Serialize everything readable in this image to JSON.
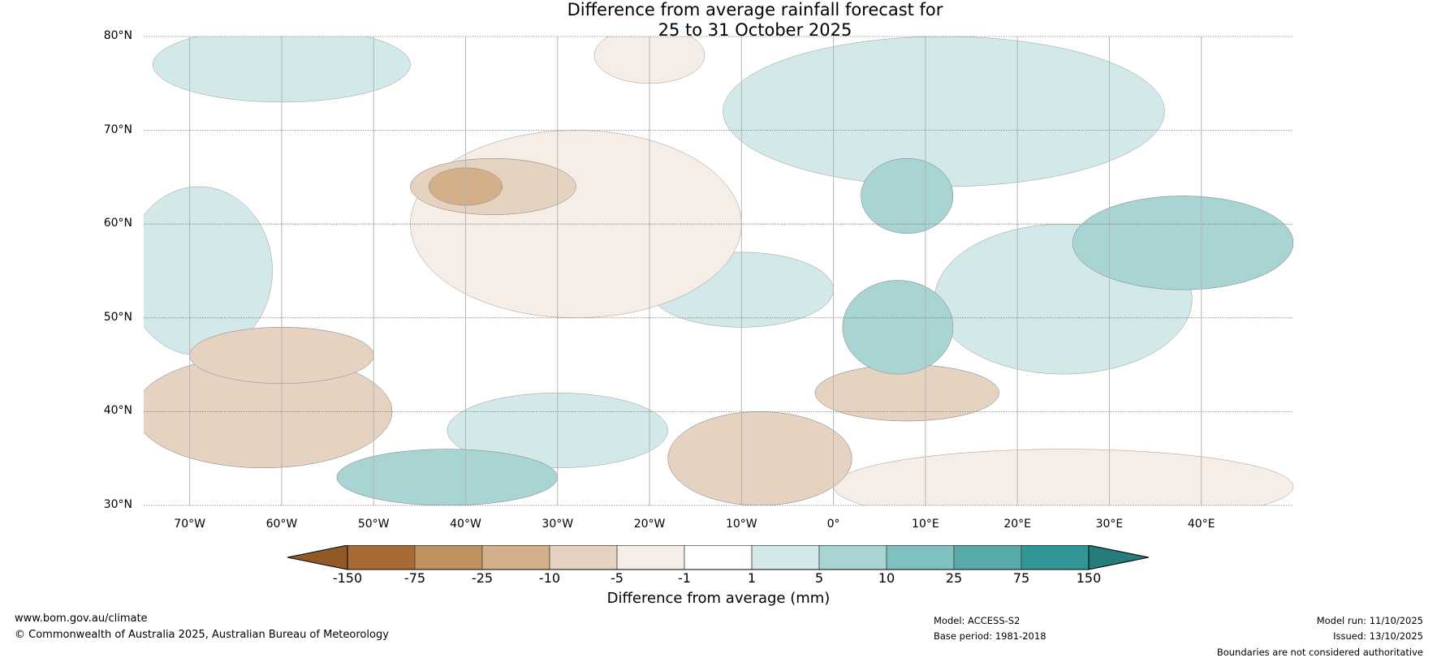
{
  "title": {
    "line1": "Difference from average rainfall forecast for",
    "line2": "25 to 31 October 2025"
  },
  "map": {
    "lon_range": [
      -75,
      50
    ],
    "lat_range": [
      30,
      80
    ],
    "lat_labels": [
      "80°N",
      "70°N",
      "60°N",
      "50°N",
      "40°N",
      "30°N"
    ],
    "lat_values": [
      80,
      70,
      60,
      50,
      40,
      30
    ],
    "lon_labels": [
      "70°W",
      "60°W",
      "50°W",
      "40°W",
      "30°W",
      "20°W",
      "10°W",
      "0°",
      "10°E",
      "20°E",
      "30°E",
      "40°E"
    ],
    "lon_values": [
      -70,
      -60,
      -50,
      -40,
      -30,
      -20,
      -10,
      0,
      10,
      20,
      30,
      40
    ],
    "anomaly_regions": [
      {
        "name": "greenland-east-coast",
        "category": -10,
        "lon": -37,
        "lat": 64,
        "rx": 9,
        "ry": 3
      },
      {
        "name": "greenland-southeast",
        "category": -25,
        "lon": -40,
        "lat": 64,
        "rx": 4,
        "ry": 2
      },
      {
        "name": "northwest-atlantic",
        "category": -10,
        "lon": -62,
        "lat": 40,
        "rx": 14,
        "ry": 6
      },
      {
        "name": "nova-scotia",
        "category": -10,
        "lon": -60,
        "lat": 46,
        "rx": 10,
        "ry": 3
      },
      {
        "name": "iberia-north-africa",
        "category": -10,
        "lon": -8,
        "lat": 35,
        "rx": 10,
        "ry": 5
      },
      {
        "name": "western-mediterranean",
        "category": -10,
        "lon": 8,
        "lat": 42,
        "rx": 10,
        "ry": 3
      },
      {
        "name": "scandinavia-west-coast",
        "category": 10,
        "lon": 8,
        "lat": 63,
        "rx": 5,
        "ry": 4
      },
      {
        "name": "baltic-russia",
        "category": 10,
        "lon": 38,
        "lat": 58,
        "rx": 12,
        "ry": 5
      },
      {
        "name": "central-europe",
        "category": 10,
        "lon": 7,
        "lat": 49,
        "rx": 6,
        "ry": 5
      },
      {
        "name": "subtropical-atlantic",
        "category": 10,
        "lon": -42,
        "lat": 33,
        "rx": 12,
        "ry": 3
      },
      {
        "name": "greenland-north",
        "category": 5,
        "lon": -60,
        "lat": 77,
        "rx": 14,
        "ry": 4
      },
      {
        "name": "norwegian-sea-arctic",
        "category": 5,
        "lon": 12,
        "lat": 72,
        "rx": 24,
        "ry": 8
      },
      {
        "name": "eastern-europe",
        "category": 5,
        "lon": 25,
        "lat": 52,
        "rx": 14,
        "ry": 8
      },
      {
        "name": "labrador",
        "category": 5,
        "lon": -69,
        "lat": 55,
        "rx": 8,
        "ry": 9
      },
      {
        "name": "mid-atlantic",
        "category": 5,
        "lon": -30,
        "lat": 38,
        "rx": 12,
        "ry": 4
      },
      {
        "name": "north-atlantic-west-europe",
        "category": 5,
        "lon": -10,
        "lat": 53,
        "rx": 10,
        "ry": 4
      },
      {
        "name": "davis-strait",
        "category": -5,
        "lon": -28,
        "lat": 60,
        "rx": 18,
        "ry": 10
      },
      {
        "name": "north-africa",
        "category": -5,
        "lon": 25,
        "lat": 32,
        "rx": 25,
        "ry": 4
      },
      {
        "name": "fram-strait",
        "category": -5,
        "lon": -20,
        "lat": 78,
        "rx": 6,
        "ry": 3
      }
    ]
  },
  "colorbar": {
    "ticks": [
      "-150",
      "-75",
      "-25",
      "-10",
      "-5",
      "-1",
      "1",
      "5",
      "10",
      "25",
      "75",
      "150"
    ],
    "colors": [
      "#a86b35",
      "#bf915f",
      "#d3b08a",
      "#e6d2c0",
      "#f5ede6",
      "#ffffff",
      "#d3e8e8",
      "#a8d4d4",
      "#7fc0c0",
      "#58aaaa",
      "#339696"
    ],
    "low_extend_color": "#8f5a25",
    "high_extend_color": "#267b7b",
    "label": "Difference from average (mm)"
  },
  "footer": {
    "website": "www.bom.gov.au/climate",
    "copyright": "© Commonwealth of Australia 2025, Australian Bureau of Meteorology",
    "model": "Model: ACCESS-S2",
    "base_period": "Base period: 1981-2018",
    "model_run": "Model run: 11/10/2025",
    "issued": "Issued: 13/10/2025",
    "disclaimer": "Boundaries are not considered authoritative"
  }
}
